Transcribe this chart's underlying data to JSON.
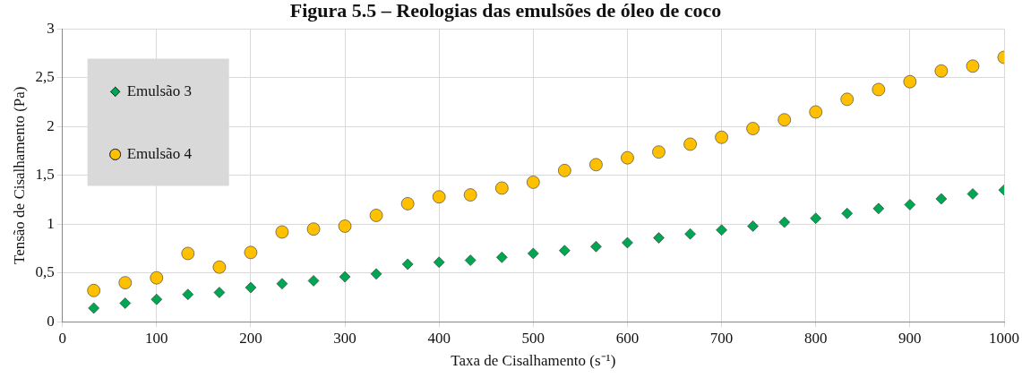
{
  "chart_data": {
    "type": "scatter",
    "title": "Figura 5.5 – Reologias das emulsões de óleo de coco",
    "xlabel": "Taxa de Cisalhamento (s⁻¹)",
    "ylabel": "Tensão de Cisalhamento (Pa)",
    "x": [
      33.3,
      66.7,
      100,
      133.3,
      166.7,
      200,
      233.3,
      266.7,
      300,
      333.3,
      366.7,
      400,
      433.3,
      466.7,
      500,
      533.3,
      566.7,
      600,
      633.3,
      666.7,
      700,
      733.3,
      766.7,
      800,
      833.3,
      866.7,
      900,
      933.3,
      966.7,
      1000
    ],
    "series": [
      {
        "name": "Emulsão 3",
        "color": "#00a651",
        "marker": "diamond",
        "values": [
          0.14,
          0.19,
          0.23,
          0.28,
          0.3,
          0.35,
          0.39,
          0.42,
          0.46,
          0.49,
          0.59,
          0.61,
          0.63,
          0.66,
          0.7,
          0.73,
          0.77,
          0.81,
          0.86,
          0.9,
          0.94,
          0.98,
          1.02,
          1.06,
          1.11,
          1.16,
          1.2,
          1.26,
          1.31,
          1.35
        ]
      },
      {
        "name": "Emulsão 4",
        "color": "#ffc000",
        "marker": "circle",
        "values": [
          0.32,
          0.4,
          0.45,
          0.7,
          0.56,
          0.71,
          0.92,
          0.95,
          0.98,
          1.09,
          1.21,
          1.28,
          1.3,
          1.37,
          1.43,
          1.55,
          1.61,
          1.68,
          1.74,
          1.82,
          1.89,
          1.98,
          2.07,
          2.15,
          2.28,
          2.38,
          2.46,
          2.57,
          2.62,
          2.71
        ]
      }
    ],
    "xlim": [
      0,
      1000
    ],
    "xticks": [
      0,
      100,
      200,
      300,
      400,
      500,
      600,
      700,
      800,
      900,
      1000
    ],
    "ylim": [
      0,
      3
    ],
    "yticks": [
      0,
      {
        "value": 0.5,
        "label": "0,5"
      },
      1,
      {
        "value": 1.5,
        "label": "1,5"
      },
      2,
      {
        "value": 2.5,
        "label": "2,5"
      },
      3
    ],
    "grid": true,
    "legend": "top left"
  }
}
